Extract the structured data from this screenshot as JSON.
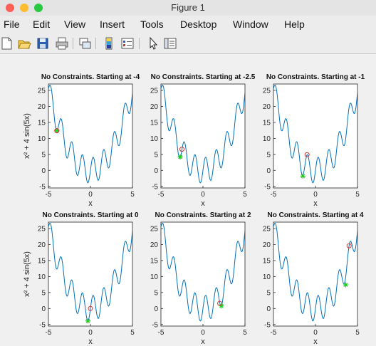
{
  "window": {
    "title": "Figure 1",
    "traffic_colors": [
      "#fe5f57",
      "#febc2e",
      "#28c840"
    ]
  },
  "menu": [
    "File",
    "Edit",
    "View",
    "Insert",
    "Tools",
    "Desktop",
    "Window",
    "Help"
  ],
  "toolbar": [
    "new-figure-icon",
    "open-file-icon",
    "save-icon",
    "print-icon",
    "link-icon",
    "colorbar-icon",
    "legend-icon",
    "arrow-pointer-icon",
    "property-editor-icon"
  ],
  "chart_data": [
    {
      "type": "line",
      "title": "No Constraints. Starting at -4",
      "xlabel": "x",
      "ylabel": "x² + 4 sin(5x)",
      "xlim": [
        -5,
        5
      ],
      "ylim": [
        -5.5,
        27
      ],
      "x_ticks": [
        "-5",
        "0",
        "5"
      ],
      "y_ticks": [
        "-5",
        "0",
        "5",
        "10",
        "15",
        "20",
        "25"
      ],
      "start": {
        "x": -4,
        "y": 12.4
      },
      "end": {
        "x": -4.0,
        "y": 12.4
      }
    },
    {
      "type": "line",
      "title": "No Constraints. Starting at -2.5",
      "xlabel": "x",
      "ylabel": "",
      "xlim": [
        -5,
        5
      ],
      "ylim": [
        -5.5,
        27
      ],
      "x_ticks": [
        "-5",
        "0",
        "5"
      ],
      "y_ticks": [
        "-5",
        "0",
        "5",
        "10",
        "15",
        "20",
        "25"
      ],
      "start": {
        "x": -2.5,
        "y": 6.6
      },
      "end": {
        "x": -2.7,
        "y": 4.2
      }
    },
    {
      "type": "line",
      "title": "No Constraints. Starting at -1",
      "xlabel": "x",
      "ylabel": "",
      "xlim": [
        -5,
        5
      ],
      "ylim": [
        -5.5,
        27
      ],
      "x_ticks": [
        "-5",
        "0",
        "5"
      ],
      "y_ticks": [
        "-5",
        "0",
        "5",
        "10",
        "15",
        "20",
        "25"
      ],
      "start": {
        "x": -1,
        "y": 4.9
      },
      "end": {
        "x": -1.5,
        "y": -1.8
      }
    },
    {
      "type": "line",
      "title": "No Constraints. Starting at 0",
      "xlabel": "x",
      "ylabel": "x² + 4 sin(5x)",
      "xlim": [
        -5,
        5
      ],
      "ylim": [
        -5.5,
        27
      ],
      "x_ticks": [
        "-5",
        "0",
        "5"
      ],
      "y_ticks": [
        "-5",
        "0",
        "5",
        "10",
        "15",
        "20",
        "25"
      ],
      "start": {
        "x": 0,
        "y": 0
      },
      "end": {
        "x": -0.3,
        "y": -3.9
      }
    },
    {
      "type": "line",
      "title": "No Constraints. Starting at 2",
      "xlabel": "x",
      "ylabel": "",
      "xlim": [
        -5,
        5
      ],
      "ylim": [
        -5.5,
        27
      ],
      "x_ticks": [
        "-5",
        "0",
        "5"
      ],
      "y_ticks": [
        "-5",
        "0",
        "5",
        "10",
        "15",
        "20",
        "25"
      ],
      "start": {
        "x": 2,
        "y": 1.6
      },
      "end": {
        "x": 2.2,
        "y": 0.8
      }
    },
    {
      "type": "line",
      "title": "No Constraints. Starting at 4",
      "xlabel": "x",
      "ylabel": "",
      "xlim": [
        -5,
        5
      ],
      "ylim": [
        -5.5,
        27
      ],
      "x_ticks": [
        "-5",
        "0",
        "5"
      ],
      "y_ticks": [
        "-5",
        "0",
        "5",
        "10",
        "15",
        "20",
        "25"
      ],
      "start": {
        "x": 4,
        "y": 19.6
      },
      "end": {
        "x": 3.6,
        "y": 7.4
      }
    }
  ],
  "colors": {
    "curve": "#0072bd",
    "start_marker": "#e0302a",
    "end_marker": "#22cc22",
    "axes_bg": "#ffffff"
  }
}
